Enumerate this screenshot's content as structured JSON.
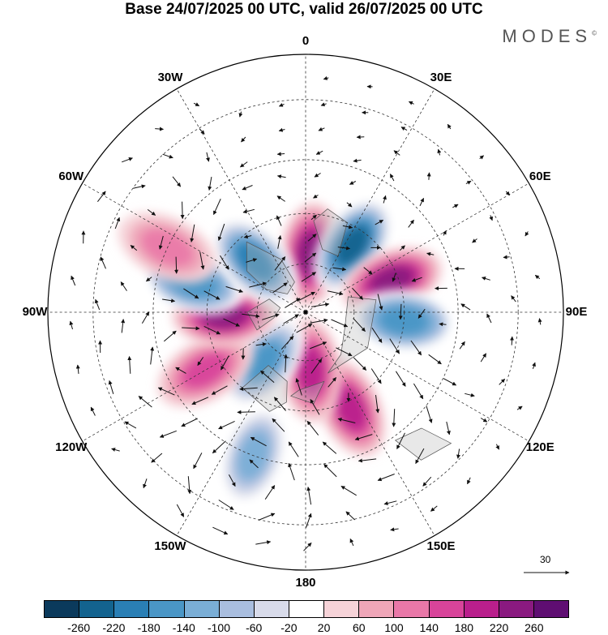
{
  "title": "Base 24/07/2025 00 UTC, valid 26/07/2025 00 UTC",
  "brand": "MODES",
  "brand_mark": "©",
  "longitude_labels": [
    "0",
    "30E",
    "60E",
    "90E",
    "120E",
    "150E",
    "180",
    "150W",
    "120W",
    "90W",
    "60W",
    "30W"
  ],
  "vector_scale_label": "30",
  "colorbar": {
    "ticks": [
      "-260",
      "-220",
      "-180",
      "-140",
      "-100",
      "-60",
      "-20",
      "20",
      "60",
      "100",
      "140",
      "180",
      "220",
      "260"
    ],
    "colors": [
      "#0b3a5c",
      "#13638f",
      "#2a7fb5",
      "#4a96c6",
      "#7aaed6",
      "#a9bedf",
      "#d8dbea",
      "#ffffff",
      "#f6d3d8",
      "#efa6b8",
      "#e978a8",
      "#d8449a",
      "#b91f8c",
      "#8a1a80",
      "#5f0e72"
    ]
  },
  "chart_data": {
    "type": "heatmap",
    "projection": "north-polar-stereographic",
    "title": "Base 24/07/2025 00 UTC, valid 26/07/2025 00 UTC",
    "field": "anomaly (shaded) with wind vectors",
    "levels": [
      -260,
      -220,
      -180,
      -140,
      -100,
      -60,
      -20,
      20,
      60,
      100,
      140,
      180,
      220,
      260
    ],
    "vector_reference": 30,
    "anomaly_centers": [
      {
        "lon": 5,
        "lat": 72,
        "value": 240,
        "sign": "positive"
      },
      {
        "lon": 35,
        "lat": 65,
        "value": -250,
        "sign": "negative"
      },
      {
        "lon": 70,
        "lat": 62,
        "value": 240,
        "sign": "positive"
      },
      {
        "lon": 95,
        "lat": 60,
        "value": -150,
        "sign": "negative"
      },
      {
        "lon": 155,
        "lat": 58,
        "value": 200,
        "sign": "positive"
      },
      {
        "lon": 175,
        "lat": 72,
        "value": 200,
        "sign": "positive"
      },
      {
        "lon": -140,
        "lat": 70,
        "value": -180,
        "sign": "negative"
      },
      {
        "lon": -120,
        "lat": 55,
        "value": 160,
        "sign": "positive"
      },
      {
        "lon": -92,
        "lat": 65,
        "value": 230,
        "sign": "positive"
      },
      {
        "lon": -75,
        "lat": 55,
        "value": -150,
        "sign": "negative"
      },
      {
        "lon": -45,
        "lat": 68,
        "value": -220,
        "sign": "negative"
      },
      {
        "lon": -65,
        "lat": 45,
        "value": 100,
        "sign": "positive"
      },
      {
        "lon": -160,
        "lat": 45,
        "value": -140,
        "sign": "negative"
      }
    ]
  }
}
